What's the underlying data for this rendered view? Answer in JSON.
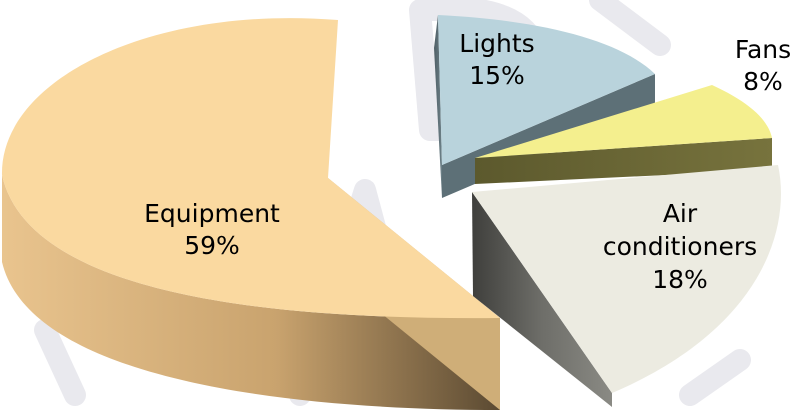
{
  "chart_data": {
    "type": "pie",
    "style": "3d-exploded",
    "title": "",
    "slices": [
      {
        "label": "Equipment",
        "value": 59,
        "display": "59%",
        "color": "#fad9a0",
        "side_color": "#d8b47c"
      },
      {
        "label": "Lights",
        "value": 15,
        "display": "15%",
        "color": "#b9d3dc",
        "side_color": "#5e7178"
      },
      {
        "label": "Fans",
        "value": 8,
        "display": "8%",
        "color": "#f4ef8e",
        "side_color": "#6f6b37"
      },
      {
        "label": "Air conditioners",
        "label_lines": [
          "Air",
          "conditioners"
        ],
        "value": 18,
        "display": "18%",
        "color": "#ecebe1",
        "side_color": "#6c6c67"
      }
    ],
    "legend": "none",
    "data_labels": "inside, category name and percentage"
  }
}
